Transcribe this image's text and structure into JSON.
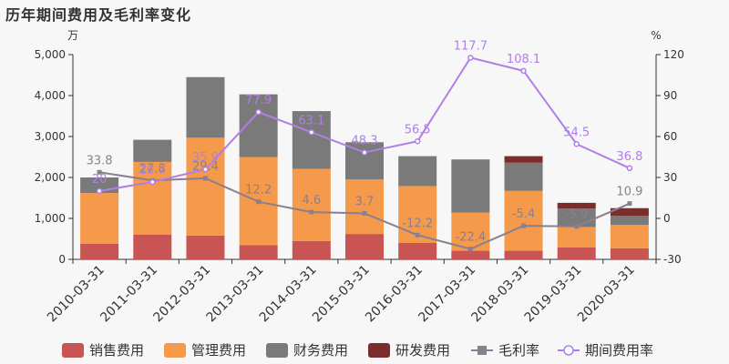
{
  "chart_data": {
    "type": "bar",
    "title": "历年期间费用及毛利率变化",
    "left_unit": "万",
    "right_unit": "%",
    "categories": [
      "2010-03-31",
      "2011-03-31",
      "2012-03-31",
      "2013-03-31",
      "2014-03-31",
      "2015-03-31",
      "2016-03-31",
      "2017-03-31",
      "2018-03-31",
      "2019-03-31",
      "2020-03-31"
    ],
    "left_axis": {
      "ylim": [
        0,
        5000
      ],
      "ticks": [
        0,
        1000,
        2000,
        3000,
        4000,
        5000
      ],
      "tick_labels": [
        "0",
        "1,000",
        "2,000",
        "3,000",
        "4,000",
        "5,000"
      ]
    },
    "right_axis": {
      "ylim": [
        -30,
        120
      ],
      "ticks": [
        -30,
        0,
        30,
        60,
        90,
        120
      ],
      "tick_labels": [
        "-30",
        "0",
        "30",
        "60",
        "90",
        "120"
      ]
    },
    "bar_series": [
      {
        "name": "销售费用",
        "color": "#c95454",
        "values": [
          380,
          600,
          580,
          350,
          450,
          620,
          400,
          210,
          210,
          290,
          270
        ]
      },
      {
        "name": "管理费用",
        "color": "#f5994a",
        "values": [
          1240,
          1780,
          2390,
          2150,
          1760,
          1330,
          1390,
          930,
          1460,
          500,
          570
        ]
      },
      {
        "name": "财务费用",
        "color": "#7a7a7a",
        "values": [
          380,
          540,
          1480,
          1530,
          1410,
          910,
          730,
          1300,
          690,
          450,
          220
        ]
      },
      {
        "name": "研发费用",
        "color": "#7b2c2c",
        "values": [
          0,
          0,
          0,
          0,
          0,
          0,
          0,
          0,
          160,
          140,
          190
        ]
      }
    ],
    "line_series": [
      {
        "name": "毛利率",
        "color": "#8a7f8f",
        "marker": "square",
        "values": [
          33.8,
          27.8,
          29.4,
          12.2,
          4.6,
          3.7,
          -12.2,
          -22.4,
          -5.4,
          -5.9,
          10.9
        ],
        "labels": [
          "33.8",
          "27.8",
          "29.4",
          "12.2",
          "4.6",
          "3.7",
          "-12.2",
          "-22.4",
          "-5.4",
          "-5.9",
          "10.9"
        ]
      },
      {
        "name": "期间费用率",
        "color": "#b07ee8",
        "marker": "circle",
        "values": [
          20.1,
          26.7,
          35.9,
          77.9,
          63.1,
          48.3,
          56.5,
          117.7,
          108.1,
          54.5,
          36.8
        ],
        "labels": [
          "20",
          "26.7",
          "35.9",
          "77.9",
          "63.1",
          "48.3",
          "56.5",
          "117.7",
          "108.1",
          "54.5",
          "36.8"
        ]
      }
    ],
    "grid": false,
    "legend_position": "bottom"
  }
}
